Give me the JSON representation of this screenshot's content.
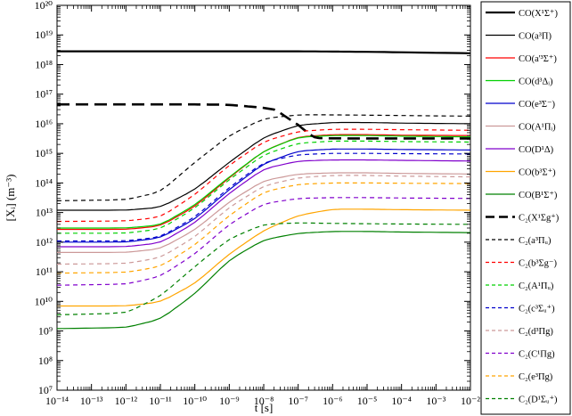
{
  "chart_data": {
    "type": "line",
    "title": "",
    "xlabel": "t [s]",
    "ylabel": "[Xᵢ] (m⁻³)",
    "xscale": "log",
    "yscale": "log",
    "xlim": [
      1e-14,
      0.01
    ],
    "ylim": [
      10000000.0,
      1e+20
    ],
    "grid": false,
    "legend_position": "right, outside plot",
    "x_tick_labels": [
      "10⁻¹⁴",
      "10⁻¹³",
      "10⁻¹²",
      "10⁻¹¹",
      "10⁻¹⁰",
      "10⁻⁹",
      "10⁻⁸",
      "10⁻⁷",
      "10⁻⁶",
      "10⁻⁵",
      "10⁻⁴",
      "10⁻³",
      "10⁻²"
    ],
    "y_tick_labels": [
      "10⁷",
      "10⁸",
      "10⁹",
      "10¹⁰",
      "10¹¹",
      "10¹²",
      "10¹³",
      "10¹⁴",
      "10¹⁵",
      "10¹⁶",
      "10¹⁷",
      "10¹⁸",
      "10¹⁹",
      "10²⁰"
    ],
    "series": [
      {
        "name": "CO(X¹Σ⁺)",
        "color": "#000000",
        "dash": "solid",
        "width": 2.2,
        "points": [
          [
            1e-14,
            2.8e+18
          ],
          [
            1e-09,
            2.8e+18
          ],
          [
            1e-07,
            2.8e+18
          ],
          [
            1e-05,
            2.7e+18
          ],
          [
            0.01,
            2.4e+18
          ]
        ]
      },
      {
        "name": "CO(a³Π)",
        "color": "#000000",
        "dash": "solid",
        "width": 1.2,
        "points": [
          [
            1e-14,
            12000000000000.0
          ],
          [
            1e-12,
            12000000000000.0
          ],
          [
            1e-11,
            15000000000000.0
          ],
          [
            1e-10,
            60000000000000.0
          ],
          [
            1e-09,
            500000000000000.0
          ],
          [
            1e-08,
            3500000000000000.0
          ],
          [
            1e-07,
            9000000000000000.0
          ],
          [
            1e-06,
            1.1e+16
          ],
          [
            1e-05,
            1.1e+16
          ],
          [
            0.0001,
            1.05e+16
          ],
          [
            0.01,
            1e+16
          ]
        ]
      },
      {
        "name": "CO(a'³Σ⁺)",
        "color": "#ff0000",
        "dash": "solid",
        "width": 1.2,
        "points": [
          [
            1e-14,
            2700000000000.0
          ],
          [
            1e-12,
            2700000000000.0
          ],
          [
            1e-11,
            3500000000000.0
          ],
          [
            1e-10,
            16000000000000.0
          ],
          [
            1e-09,
            150000000000000.0
          ],
          [
            1e-08,
            1200000000000000.0
          ],
          [
            1e-07,
            3600000000000000.0
          ],
          [
            1e-06,
            4300000000000000.0
          ],
          [
            1e-05,
            4300000000000000.0
          ],
          [
            0.0001,
            4100000000000000.0
          ],
          [
            0.01,
            4000000000000000.0
          ]
        ]
      },
      {
        "name": "CO(d³Δᵢ)",
        "color": "#00d000",
        "dash": "solid",
        "width": 1.2,
        "points": [
          [
            1e-14,
            3000000000000.0
          ],
          [
            1e-12,
            3000000000000.0
          ],
          [
            1e-11,
            3800000000000.0
          ],
          [
            1e-10,
            18000000000000.0
          ],
          [
            1e-09,
            160000000000000.0
          ],
          [
            1e-08,
            1200000000000000.0
          ],
          [
            1e-07,
            3500000000000000.0
          ],
          [
            1e-06,
            4000000000000000.0
          ],
          [
            1e-05,
            4000000000000000.0
          ],
          [
            0.0001,
            3800000000000000.0
          ],
          [
            0.01,
            3600000000000000.0
          ]
        ]
      },
      {
        "name": "CO(e³Σ⁻)",
        "color": "#0000cc",
        "dash": "solid",
        "width": 1.2,
        "points": [
          [
            1e-14,
            1000000000000.0
          ],
          [
            1e-12,
            1000000000000.0
          ],
          [
            1e-11,
            1400000000000.0
          ],
          [
            1e-10,
            6000000000000.0
          ],
          [
            1e-09,
            60000000000000.0
          ],
          [
            1e-08,
            450000000000000.0
          ],
          [
            1e-07,
            1200000000000000.0
          ],
          [
            1e-06,
            1400000000000000.0
          ],
          [
            1e-05,
            1400000000000000.0
          ],
          [
            0.0001,
            1350000000000000.0
          ],
          [
            0.01,
            1300000000000000.0
          ]
        ]
      },
      {
        "name": "CO(A¹Πᵢ)",
        "color": "#cc9999",
        "dash": "solid",
        "width": 1.2,
        "points": [
          [
            1e-14,
            450000000000.0
          ],
          [
            1e-12,
            450000000000.0
          ],
          [
            1e-11,
            600000000000.0
          ],
          [
            1e-10,
            2600000000000.0
          ],
          [
            1e-09,
            23000000000000.0
          ],
          [
            1e-08,
            120000000000000.0
          ],
          [
            1e-07,
            200000000000000.0
          ],
          [
            1e-06,
            220000000000000.0
          ],
          [
            1e-05,
            220000000000000.0
          ],
          [
            0.0001,
            210000000000000.0
          ],
          [
            0.01,
            200000000000000.0
          ]
        ]
      },
      {
        "name": "CO(D¹Δ)",
        "color": "#8000cc",
        "dash": "solid",
        "width": 1.2,
        "points": [
          [
            1e-14,
            700000000000.0
          ],
          [
            1e-12,
            700000000000.0
          ],
          [
            1e-11,
            950000000000.0
          ],
          [
            1e-10,
            4500000000000.0
          ],
          [
            1e-09,
            45000000000000.0
          ],
          [
            1e-08,
            300000000000000.0
          ],
          [
            1e-07,
            550000000000000.0
          ],
          [
            1e-06,
            600000000000000.0
          ],
          [
            1e-05,
            600000000000000.0
          ],
          [
            0.0001,
            580000000000000.0
          ],
          [
            0.01,
            550000000000000.0
          ]
        ]
      },
      {
        "name": "CO(b³Σ⁺)",
        "color": "#ffa500",
        "dash": "solid",
        "width": 1.2,
        "points": [
          [
            1e-14,
            7000000000.0
          ],
          [
            1e-12,
            7000000000.0
          ],
          [
            1e-11,
            9500000000.0
          ],
          [
            1e-10,
            40000000000.0
          ],
          [
            1e-09,
            400000000000.0
          ],
          [
            1e-08,
            2500000000000.0
          ],
          [
            1e-07,
            8000000000000.0
          ],
          [
            1e-06,
            13000000000000.0
          ],
          [
            1e-05,
            13000000000000.0
          ],
          [
            0.0001,
            12500000000000.0
          ],
          [
            0.01,
            12000000000000.0
          ]
        ]
      },
      {
        "name": "CO(B¹Σ⁺)",
        "color": "#008000",
        "dash": "solid",
        "width": 1.2,
        "points": [
          [
            1e-14,
            1200000000.0
          ],
          [
            1e-12,
            1300000000.0
          ],
          [
            1e-11,
            2500000000.0
          ],
          [
            1e-10,
            18000000000.0
          ],
          [
            1e-09,
            250000000000.0
          ],
          [
            1e-08,
            1200000000000.0
          ],
          [
            1e-07,
            2000000000000.0
          ],
          [
            1e-06,
            2300000000000.0
          ],
          [
            1e-05,
            2300000000000.0
          ],
          [
            0.0001,
            2200000000000.0
          ],
          [
            0.01,
            2100000000000.0
          ]
        ]
      },
      {
        "name": "C₂(X¹Σg⁺)",
        "color": "#000000",
        "dash": "long",
        "width": 2.6,
        "points": [
          [
            1e-14,
            4.5e+16
          ],
          [
            1e-10,
            4.5e+16
          ],
          [
            1e-09,
            4.4e+16
          ],
          [
            2e-08,
            3.2e+16
          ],
          [
            1e-07,
            9000000000000000.0
          ],
          [
            3e-07,
            3300000000000000.0
          ],
          [
            1e-06,
            3200000000000000.0
          ],
          [
            0.0001,
            3200000000000000.0
          ],
          [
            0.01,
            3200000000000000.0
          ]
        ]
      },
      {
        "name": "C₂(a³Πᵤ)",
        "color": "#000000",
        "dash": "short",
        "width": 1.2,
        "points": [
          [
            1e-14,
            25000000000000.0
          ],
          [
            1e-12,
            27000000000000.0
          ],
          [
            1e-11,
            50000000000000.0
          ],
          [
            1e-10,
            500000000000000.0
          ],
          [
            1e-09,
            4000000000000000.0
          ],
          [
            1e-08,
            1.5e+16
          ],
          [
            1e-07,
            2e+16
          ],
          [
            1e-06,
            2e+16
          ],
          [
            0.0001,
            1.9e+16
          ],
          [
            0.01,
            1.8e+16
          ]
        ]
      },
      {
        "name": "C₂(b³Σg⁻)",
        "color": "#ff0000",
        "dash": "short",
        "width": 1.2,
        "points": [
          [
            1e-14,
            5000000000000.0
          ],
          [
            1e-12,
            5200000000000.0
          ],
          [
            1e-11,
            7000000000000.0
          ],
          [
            1e-10,
            40000000000000.0
          ],
          [
            1e-09,
            400000000000000.0
          ],
          [
            1e-08,
            2500000000000000.0
          ],
          [
            1e-07,
            5500000000000000.0
          ],
          [
            1e-06,
            6500000000000000.0
          ],
          [
            1e-05,
            6500000000000000.0
          ],
          [
            0.0001,
            6300000000000000.0
          ],
          [
            0.01,
            6000000000000000.0
          ]
        ]
      },
      {
        "name": "C₂(A¹Πᵤ)",
        "color": "#00d000",
        "dash": "short",
        "width": 1.2,
        "points": [
          [
            1e-14,
            2000000000000.0
          ],
          [
            1e-12,
            2000000000000.0
          ],
          [
            1e-11,
            2800000000000.0
          ],
          [
            1e-10,
            14000000000000.0
          ],
          [
            1e-09,
            130000000000000.0
          ],
          [
            1e-08,
            900000000000000.0
          ],
          [
            1e-07,
            2200000000000000.0
          ],
          [
            1e-06,
            2600000000000000.0
          ],
          [
            1e-05,
            2600000000000000.0
          ],
          [
            0.0001,
            2500000000000000.0
          ],
          [
            0.01,
            2400000000000000.0
          ]
        ]
      },
      {
        "name": "C₂(c³Σᵤ⁺)",
        "color": "#0000cc",
        "dash": "short",
        "width": 1.2,
        "points": [
          [
            1e-14,
            1100000000000.0
          ],
          [
            1e-12,
            1100000000000.0
          ],
          [
            1e-11,
            1500000000000.0
          ],
          [
            1e-10,
            7000000000000.0
          ],
          [
            1e-09,
            70000000000000.0
          ],
          [
            1e-08,
            500000000000000.0
          ],
          [
            1e-07,
            900000000000000.0
          ],
          [
            1e-06,
            1000000000000000.0
          ],
          [
            1e-05,
            1000000000000000.0
          ],
          [
            0.0001,
            980000000000000.0
          ],
          [
            0.01,
            950000000000000.0
          ]
        ]
      },
      {
        "name": "C₂(d³Πg)",
        "color": "#cc9999",
        "dash": "short",
        "width": 1.2,
        "points": [
          [
            1e-14,
            180000000000.0
          ],
          [
            1e-12,
            190000000000.0
          ],
          [
            1e-11,
            300000000000.0
          ],
          [
            1e-10,
            1500000000000.0
          ],
          [
            1e-09,
            15000000000000.0
          ],
          [
            1e-08,
            80000000000000.0
          ],
          [
            1e-07,
            150000000000000.0
          ],
          [
            1e-06,
            180000000000000.0
          ],
          [
            1e-05,
            180000000000000.0
          ],
          [
            0.0001,
            170000000000000.0
          ],
          [
            0.01,
            160000000000000.0
          ]
        ]
      },
      {
        "name": "C₂(C¹Πg)",
        "color": "#8000cc",
        "dash": "short",
        "width": 1.2,
        "points": [
          [
            1e-14,
            35000000000.0
          ],
          [
            1e-12,
            38000000000.0
          ],
          [
            1e-11,
            70000000000.0
          ],
          [
            1e-10,
            400000000000.0
          ],
          [
            1e-09,
            4000000000000.0
          ],
          [
            1e-08,
            20000000000000.0
          ],
          [
            1e-07,
            30000000000000.0
          ],
          [
            1e-06,
            32000000000000.0
          ],
          [
            1e-05,
            32000000000000.0
          ],
          [
            0.0001,
            31000000000000.0
          ],
          [
            0.01,
            30000000000000.0
          ]
        ]
      },
      {
        "name": "C₂(e³Πg)",
        "color": "#ffa500",
        "dash": "short",
        "width": 1.2,
        "points": [
          [
            1e-14,
            90000000000.0
          ],
          [
            1e-12,
            95000000000.0
          ],
          [
            1e-11,
            150000000000.0
          ],
          [
            1e-10,
            800000000000.0
          ],
          [
            1e-09,
            8000000000000.0
          ],
          [
            1e-08,
            50000000000000.0
          ],
          [
            1e-07,
            90000000000000.0
          ],
          [
            1e-06,
            100000000000000.0
          ],
          [
            1e-05,
            100000000000000.0
          ],
          [
            0.0001,
            98000000000000.0
          ],
          [
            0.01,
            95000000000000.0
          ]
        ]
      },
      {
        "name": "C₂(D¹Σᵤ⁺)",
        "color": "#008000",
        "dash": "short",
        "width": 1.2,
        "points": [
          [
            1e-14,
            3500000000.0
          ],
          [
            1e-12,
            4000000000.0
          ],
          [
            1e-11,
            15000000000.0
          ],
          [
            1e-10,
            150000000000.0
          ],
          [
            1e-09,
            1300000000000.0
          ],
          [
            1e-08,
            4000000000000.0
          ],
          [
            1e-07,
            4500000000000.0
          ],
          [
            1e-06,
            4300000000000.0
          ],
          [
            1e-05,
            4200000000000.0
          ],
          [
            0.0001,
            4100000000000.0
          ],
          [
            0.01,
            4000000000000.0
          ]
        ]
      }
    ]
  }
}
